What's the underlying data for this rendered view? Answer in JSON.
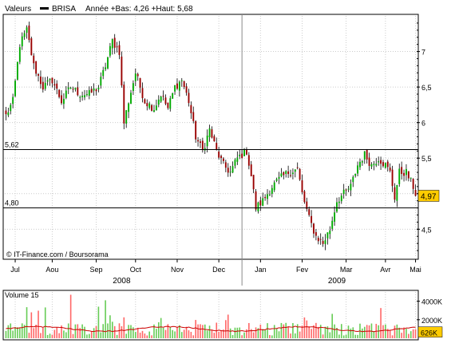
{
  "legend": {
    "prefix": "Valeurs",
    "symbol": "BRISA",
    "stats": "Année +Bas: 4,26 +Haut: 5,68"
  },
  "copyright": "© IT-Finance.com / Boursorama",
  "volume_label": "Volume 15",
  "colors": {
    "up": "#00aa00",
    "down": "#990000",
    "volume_up": "#66cc55",
    "volume_down": "#ff6666",
    "volume_ma": "#cc0000",
    "grid": "#cccccc",
    "hline": "#000000",
    "price_badge_bg": "#ffcc00",
    "volume_badge_bg": "#ffcc00"
  },
  "chart_data": [
    {
      "type": "candlestick",
      "title": "BRISA",
      "ylim": [
        4.1,
        7.5
      ],
      "yticks": [
        "4,5",
        "5",
        "5,5",
        "6",
        "6,5",
        "7"
      ],
      "ytick_values": [
        4.5,
        5.0,
        5.5,
        6.0,
        6.5,
        7.0
      ],
      "months": [
        "Jul",
        "Aou",
        "Sep",
        "Oct",
        "Nov",
        "Dec",
        "Jan",
        "Fev",
        "Mar",
        "Avr",
        "Mai"
      ],
      "years": [
        "2008",
        "2009"
      ],
      "reference_lines": [
        {
          "label": "5,62",
          "value": 5.62
        },
        {
          "label": "4,80",
          "value": 4.8
        }
      ],
      "last_price": {
        "label": "4,97",
        "value": 4.97
      },
      "anchors": [
        [
          0,
          6.1
        ],
        [
          3,
          6.3
        ],
        [
          6,
          7.1
        ],
        [
          9,
          7.3
        ],
        [
          12,
          6.8
        ],
        [
          16,
          6.5
        ],
        [
          20,
          6.6
        ],
        [
          24,
          6.3
        ],
        [
          28,
          6.5
        ],
        [
          32,
          6.4
        ],
        [
          36,
          6.4
        ],
        [
          40,
          6.5
        ],
        [
          43,
          6.8
        ],
        [
          46,
          7.15
        ],
        [
          49,
          7.0
        ],
        [
          51,
          6.0
        ],
        [
          53,
          6.3
        ],
        [
          56,
          6.7
        ],
        [
          60,
          6.3
        ],
        [
          64,
          6.2
        ],
        [
          67,
          6.4
        ],
        [
          70,
          6.2
        ],
        [
          73,
          6.5
        ],
        [
          76,
          6.6
        ],
        [
          79,
          6.3
        ],
        [
          82,
          5.8
        ],
        [
          85,
          5.6
        ],
        [
          88,
          5.9
        ],
        [
          91,
          5.6
        ],
        [
          94,
          5.4
        ],
        [
          97,
          5.3
        ],
        [
          100,
          5.5
        ],
        [
          104,
          5.6
        ],
        [
          106,
          5.25
        ],
        [
          108,
          4.8
        ],
        [
          111,
          4.9
        ],
        [
          115,
          5.1
        ],
        [
          118,
          5.2
        ],
        [
          122,
          5.3
        ],
        [
          126,
          5.35
        ],
        [
          128,
          5.0
        ],
        [
          131,
          4.65
        ],
        [
          134,
          4.4
        ],
        [
          137,
          4.3
        ],
        [
          140,
          4.5
        ],
        [
          143,
          4.9
        ],
        [
          146,
          5.0
        ],
        [
          149,
          5.1
        ],
        [
          152,
          5.4
        ],
        [
          155,
          5.55
        ],
        [
          158,
          5.4
        ],
        [
          161,
          5.5
        ],
        [
          164,
          5.4
        ],
        [
          166,
          5.3
        ],
        [
          168,
          4.95
        ],
        [
          170,
          5.3
        ],
        [
          173,
          5.3
        ],
        [
          176,
          5.1
        ],
        [
          177,
          4.97
        ]
      ],
      "candles_total": 178,
      "x_ticks": [
        {
          "label": "Jul",
          "i": 4
        },
        {
          "label": "Aou",
          "i": 20
        },
        {
          "label": "Sep",
          "i": 39
        },
        {
          "label": "Oct",
          "i": 56
        },
        {
          "label": "Nov",
          "i": 74
        },
        {
          "label": "Dec",
          "i": 92
        },
        {
          "label": "Jan",
          "i": 110
        },
        {
          "label": "Fev",
          "i": 128
        },
        {
          "label": "Mar",
          "i": 147
        },
        {
          "label": "Avr",
          "i": 164
        },
        {
          "label": "Mai",
          "i": 177
        }
      ],
      "year_ticks": [
        {
          "label": "2008",
          "i": 50
        },
        {
          "label": "2009",
          "i": 143
        }
      ],
      "year_divider_i": 102
    },
    {
      "type": "bar",
      "title": "Volume 15",
      "ylim": [
        0,
        5000
      ],
      "yticks": [
        "4000K",
        "2000K"
      ],
      "ytick_values": [
        4000,
        2000
      ],
      "last_value": {
        "label": "626K",
        "value": 626
      },
      "moving_average_level": 1000
    }
  ]
}
